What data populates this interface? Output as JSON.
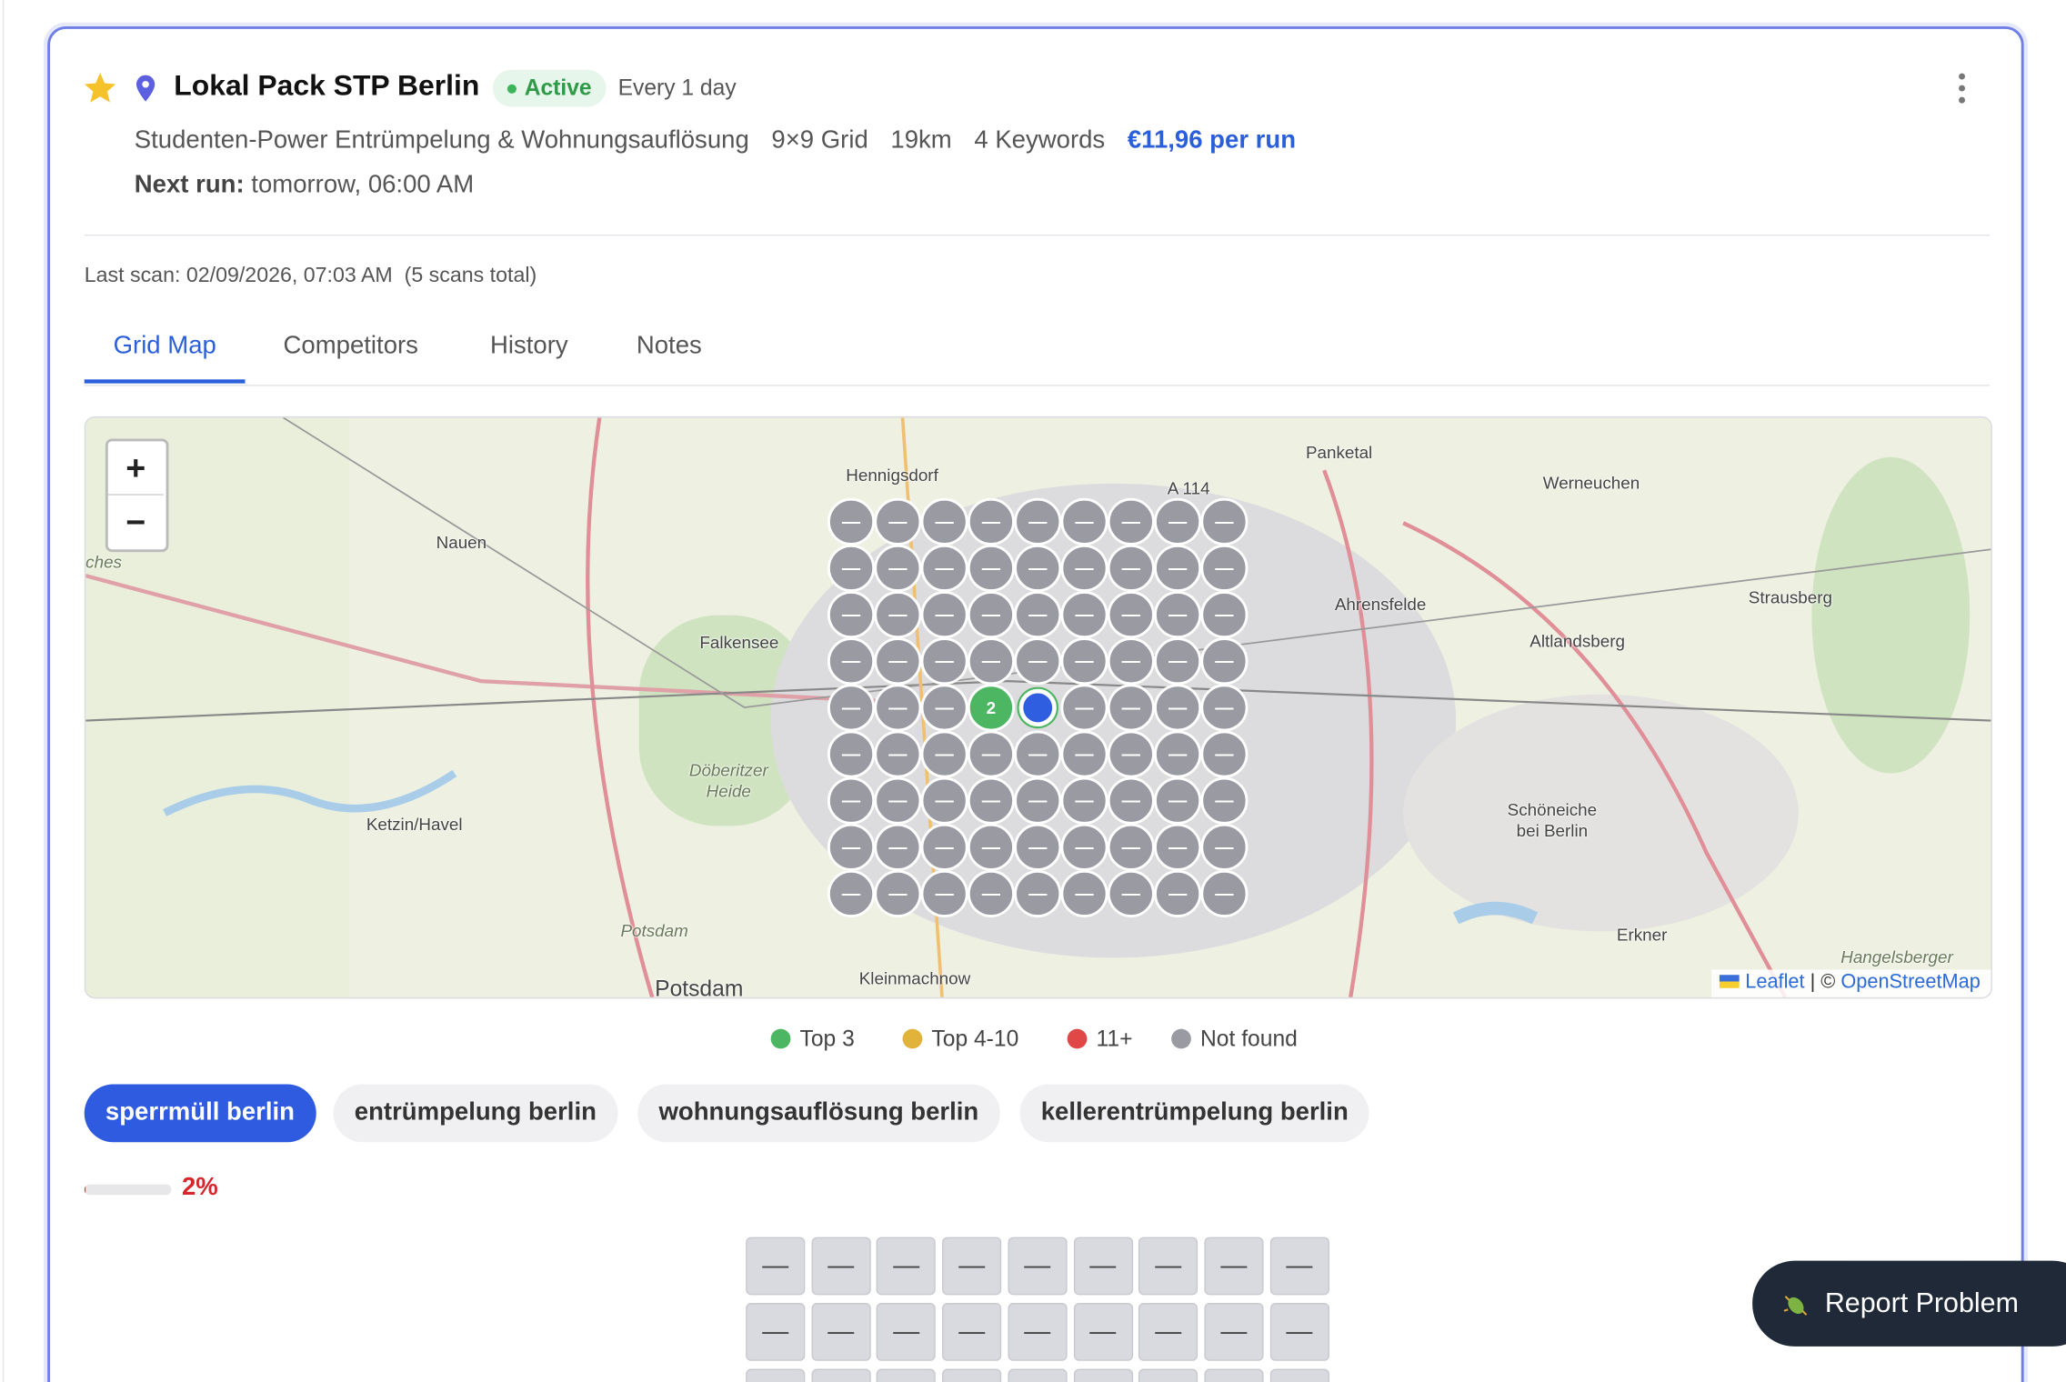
{
  "header": {
    "title": "Lokal Pack STP Berlin",
    "status": "Active",
    "frequency": "Every 1 day",
    "details": [
      "Studenten-Power Entrümpelung & Wohnungsauflösung",
      "9×9 Grid",
      "19km",
      "4 Keywords"
    ],
    "price": "€11,96 per run",
    "next_run_label": "Next run:",
    "next_run": "tomorrow, 06:00 AM"
  },
  "last_scan": "Last scan: 02/09/2026, 07:03 AM",
  "scans_total": "(5 scans total)",
  "tabs": {
    "items": [
      "Grid Map",
      "Competitors",
      "History",
      "Notes"
    ],
    "active": 0
  },
  "map": {
    "zoom_in": "+",
    "zoom_out": "−",
    "places": [
      "Hennigsdorf",
      "Panketal",
      "A 114",
      "Werneuchen",
      "Nauen",
      "ches",
      "Ahrensfelde",
      "Strausberg",
      "Falkensee",
      "Altlandsberg",
      "Döberitzer Heide",
      "Ketzin/Havel",
      "Schöneiche bei Berlin",
      "Potsdam",
      "Potsdam",
      "Kleinmachnow",
      "Erkner",
      "Hangelsberger"
    ],
    "grid": [
      [
        "—",
        "—",
        "—",
        "—",
        "—",
        "—",
        "—",
        "—",
        "—"
      ],
      [
        "—",
        "—",
        "—",
        "—",
        "—",
        "—",
        "—",
        "—",
        "—"
      ],
      [
        "—",
        "—",
        "—",
        "—",
        "—",
        "—",
        "—",
        "—",
        "—"
      ],
      [
        "—",
        "—",
        "—",
        "—",
        "—",
        "—",
        "—",
        "—",
        "—"
      ],
      [
        "—",
        "—",
        "—",
        2,
        null,
        "—",
        "—",
        "—",
        "—"
      ],
      [
        "—",
        "—",
        "—",
        "—",
        "—",
        "—",
        "—",
        "—",
        "—"
      ],
      [
        "—",
        "—",
        "—",
        "—",
        "—",
        "—",
        "—",
        "—",
        "—"
      ],
      [
        "—",
        "—",
        "—",
        "—",
        "—",
        "—",
        "—",
        "—",
        "—"
      ],
      [
        "—",
        "—",
        "—",
        "—",
        "—",
        "—",
        "—",
        "—",
        "—"
      ]
    ],
    "attribution": {
      "library": "Leaflet",
      "separator": "| ©",
      "source": "OpenStreetMap"
    }
  },
  "legend": [
    {
      "label": "Top 3",
      "color": "#4cb663"
    },
    {
      "label": "Top 4-10",
      "color": "#e2b33b"
    },
    {
      "label": "11+",
      "color": "#e04848"
    },
    {
      "label": "Not found",
      "color": "#9a9aa3"
    }
  ],
  "keywords": {
    "items": [
      "sperrmüll berlin",
      "entrümpelung berlin",
      "wohnungsauflösung berlin",
      "kellerentrümpelung berlin"
    ],
    "active": 0
  },
  "progress": {
    "value": 2,
    "label": "2%"
  },
  "rank_grid": [
    [
      "—",
      "—",
      "—",
      "—",
      "—",
      "—",
      "—",
      "—",
      "—"
    ],
    [
      "—",
      "—",
      "—",
      "—",
      "—",
      "—",
      "—",
      "—",
      "—"
    ]
  ],
  "report_button": "Report Problem"
}
